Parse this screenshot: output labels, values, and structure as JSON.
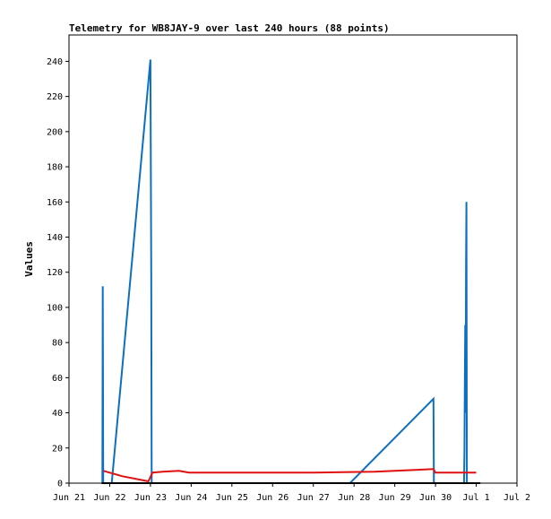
{
  "chart_data": {
    "type": "line",
    "title": "Telemetry for WB8JAY-9 over last 240 hours (88 points)",
    "xlabel": "",
    "ylabel": "Values",
    "ylim": [
      0,
      255
    ],
    "xlim": [
      0,
      11
    ],
    "x_tick_values": [
      0,
      1,
      2,
      3,
      4,
      5,
      6,
      7,
      8,
      9,
      10,
      11
    ],
    "x_tick_labels": [
      "Jun 21",
      "Jun 22",
      "Jun 23",
      "Jun 24",
      "Jun 25",
      "Jun 26",
      "Jun 27",
      "Jun 28",
      "Jun 29",
      "Jun 30",
      "Jul 1",
      "Jul 2"
    ],
    "y_ticks": [
      0,
      20,
      40,
      60,
      80,
      100,
      120,
      140,
      160,
      180,
      200,
      220,
      240
    ],
    "series": [
      {
        "color": "#0d6fbf",
        "points": [
          [
            0.82,
            0
          ],
          [
            0.83,
            112
          ],
          [
            0.84,
            0
          ],
          [
            1.05,
            0
          ],
          [
            2.0,
            241
          ],
          [
            2.02,
            120
          ],
          [
            2.03,
            0
          ],
          [
            6.9,
            0
          ],
          [
            8.95,
            48
          ],
          [
            8.96,
            0
          ],
          [
            9.7,
            0
          ],
          [
            9.71,
            18
          ],
          [
            9.72,
            55
          ],
          [
            9.73,
            90
          ],
          [
            9.74,
            40
          ],
          [
            9.75,
            125
          ],
          [
            9.76,
            160
          ],
          [
            9.77,
            0
          ],
          [
            10.1,
            0
          ]
        ]
      },
      {
        "color": "#e01010",
        "points": [
          [
            0.85,
            7
          ],
          [
            1.3,
            4
          ],
          [
            1.95,
            1
          ],
          [
            2.05,
            6
          ],
          [
            2.3,
            6.5
          ],
          [
            2.7,
            7
          ],
          [
            2.95,
            6
          ],
          [
            4.0,
            6
          ],
          [
            6.0,
            6
          ],
          [
            7.5,
            6.5
          ],
          [
            8.5,
            7.5
          ],
          [
            8.95,
            8
          ],
          [
            9.0,
            6
          ],
          [
            9.6,
            6
          ],
          [
            9.8,
            6
          ],
          [
            10.0,
            6
          ]
        ]
      },
      {
        "color": "#000000",
        "points": [
          [
            0.8,
            0
          ],
          [
            10.1,
            0
          ]
        ]
      }
    ]
  }
}
